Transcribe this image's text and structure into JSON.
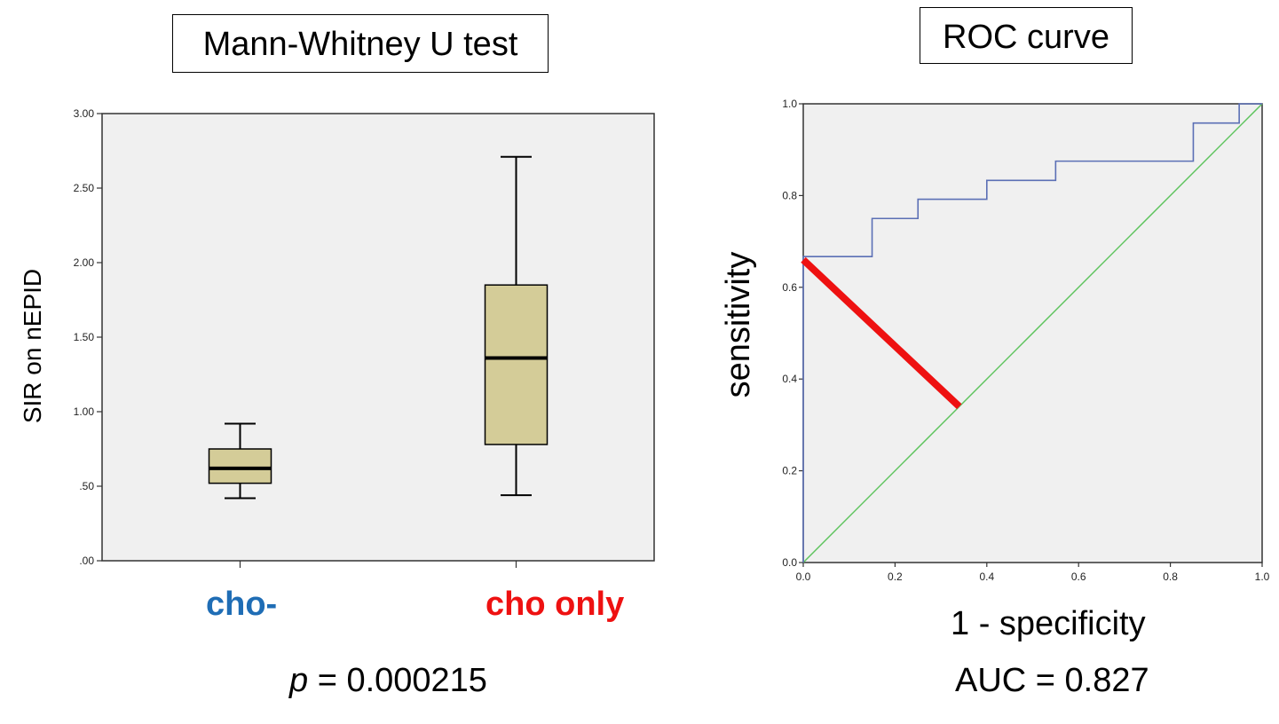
{
  "left_panel": {
    "title": "Mann-Whitney U test",
    "p_prefix": "p",
    "p_value_text": " = 0.000215"
  },
  "right_panel": {
    "title": "ROC curve",
    "auc_text": "AUC = 0.827"
  },
  "colors": {
    "box_fill": "#d4cc98",
    "plot_background": "#f0f0f0",
    "cat0_color": "#1f6db5",
    "cat1_color": "#ee1111",
    "roc_curve": "#5b6fb5",
    "reference_line": "#5ec45e",
    "highlight_line": "#ee1111"
  },
  "chart_data": [
    {
      "type": "box",
      "ylabel": "SIR on nEPID",
      "ylim": [
        0,
        3
      ],
      "y_ticks": [
        ".00",
        ".50",
        "1.00",
        "1.50",
        "2.00",
        "2.50",
        "3.00"
      ],
      "categories": [
        "cho-",
        "cho only"
      ],
      "boxes": [
        {
          "name": "cho-",
          "min": 0.42,
          "q1": 0.52,
          "median": 0.62,
          "q3": 0.75,
          "max": 0.92
        },
        {
          "name": "cho only",
          "min": 0.44,
          "q1": 0.78,
          "median": 1.36,
          "q3": 1.85,
          "max": 2.71
        }
      ]
    },
    {
      "type": "line",
      "xlabel": "1 - specificity",
      "ylabel": "sensitivity",
      "xlim": [
        0,
        1
      ],
      "ylim": [
        0,
        1
      ],
      "x_ticks": [
        "0.0",
        "0.2",
        "0.4",
        "0.6",
        "0.8",
        "1.0"
      ],
      "y_ticks": [
        "0.0",
        "0.2",
        "0.4",
        "0.6",
        "0.8",
        "1.0"
      ],
      "series": [
        {
          "x": [
            0,
            0,
            0.15,
            0.15,
            0.25,
            0.25,
            0.4,
            0.4,
            0.55,
            0.55,
            0.85,
            0.85,
            0.95,
            0.95,
            1.0
          ],
          "y": [
            0,
            0.667,
            0.667,
            0.75,
            0.75,
            0.792,
            0.792,
            0.833,
            0.833,
            0.875,
            0.875,
            0.958,
            0.958,
            1.0,
            1.0
          ]
        },
        {
          "x": [
            0,
            1
          ],
          "y": [
            0,
            1
          ]
        }
      ],
      "annotations": [
        {
          "x": [
            0,
            0.34
          ],
          "y": [
            0.66,
            0.34
          ]
        }
      ],
      "grid": false,
      "auc": 0.827
    }
  ]
}
